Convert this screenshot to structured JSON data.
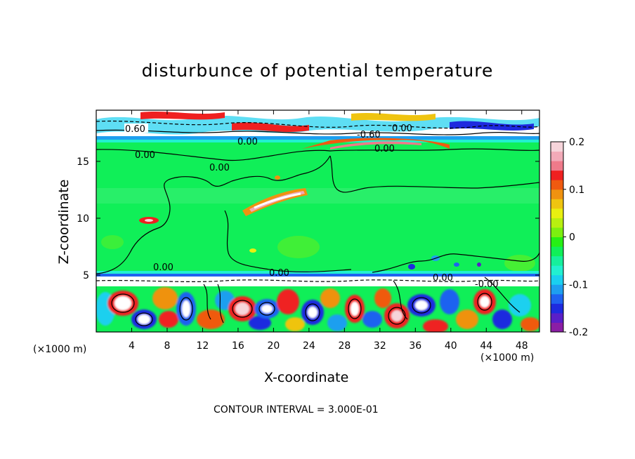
{
  "chart_data": {
    "type": "heatmap",
    "title": "disturbunce of potential temperature",
    "xlabel": "X-coordinate",
    "ylabel": "Z-coordinate",
    "x_unit": "(×1000 m)",
    "x_ticks": [
      4,
      8,
      12,
      16,
      20,
      24,
      28,
      32,
      36,
      40,
      44,
      48
    ],
    "xlim": [
      0,
      50
    ],
    "y_ticks": [
      5,
      10,
      15
    ],
    "ylim": [
      0,
      19.5
    ],
    "colorbar": {
      "ticks": [
        -0.2,
        -0.1,
        0,
        0.1,
        0.2
      ],
      "tick_labels": [
        "-0.2",
        "-0.1",
        "0",
        "0.1",
        "0.2"
      ],
      "range": [
        -0.2,
        0.2
      ],
      "colors": [
        "#8b1ea5",
        "#5a1fc8",
        "#1e2adf",
        "#1f62f0",
        "#1e9fef",
        "#1ad0ef",
        "#22f0d0",
        "#16ef9c",
        "#10ef58",
        "#26ef14",
        "#7cef10",
        "#b8ef10",
        "#e9ef10",
        "#efc410",
        "#ef9210",
        "#ef5a10",
        "#ef2020",
        "#ef7a8a",
        "#f2aab8",
        "#f6d4da"
      ]
    },
    "contour_labels": [
      "0.00",
      "0.60",
      "-0.60",
      "-0.00"
    ],
    "contour_interval_text": "CONTOUR INTERVAL = 3.000E-01"
  },
  "footnote": "CONTOUR INTERVAL = 3.000E-01"
}
